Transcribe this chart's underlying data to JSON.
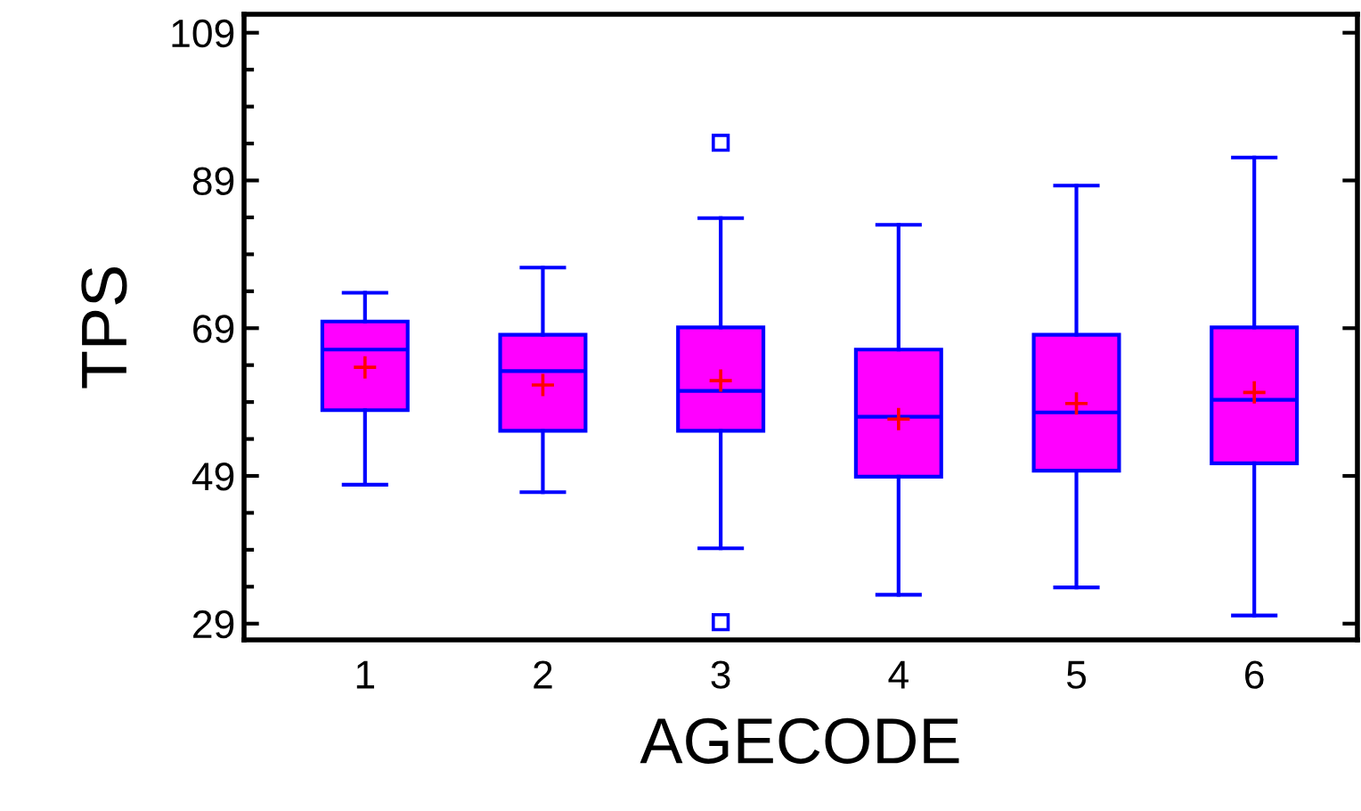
{
  "chart_data": {
    "type": "box",
    "xlabel": "AGECODE",
    "ylabel": "TPS",
    "categories": [
      "1",
      "2",
      "3",
      "4",
      "5",
      "6"
    ],
    "series": [
      {
        "color": "#ff00ff",
        "boxes": [
          {
            "low": 47.8,
            "q1": 57.9,
            "median": 66.1,
            "q3": 69.9,
            "high": 73.8,
            "mean": 63.7
          },
          {
            "low": 46.8,
            "q1": 55.1,
            "median": 63.2,
            "q3": 68.1,
            "high": 77.2,
            "mean": 61.3
          },
          {
            "low": 39.2,
            "q1": 55.1,
            "median": 60.5,
            "q3": 69.1,
            "high": 83.9,
            "mean": 61.9,
            "outliers": [
              94.1,
              29.2
            ]
          },
          {
            "low": 32.9,
            "q1": 48.9,
            "median": 57.0,
            "q3": 66.1,
            "high": 83.0,
            "mean": 56.7
          },
          {
            "low": 33.9,
            "q1": 49.7,
            "median": 57.6,
            "q3": 68.1,
            "high": 88.3,
            "mean": 58.8
          },
          {
            "low": 30.1,
            "q1": 50.7,
            "median": 59.3,
            "q3": 69.1,
            "high": 92.1,
            "mean": 60.3
          }
        ]
      }
    ],
    "ylim": [
      26.8,
      111.5
    ],
    "yticks": [
      29,
      49,
      69,
      89,
      109
    ],
    "grid": false,
    "legend": false
  }
}
